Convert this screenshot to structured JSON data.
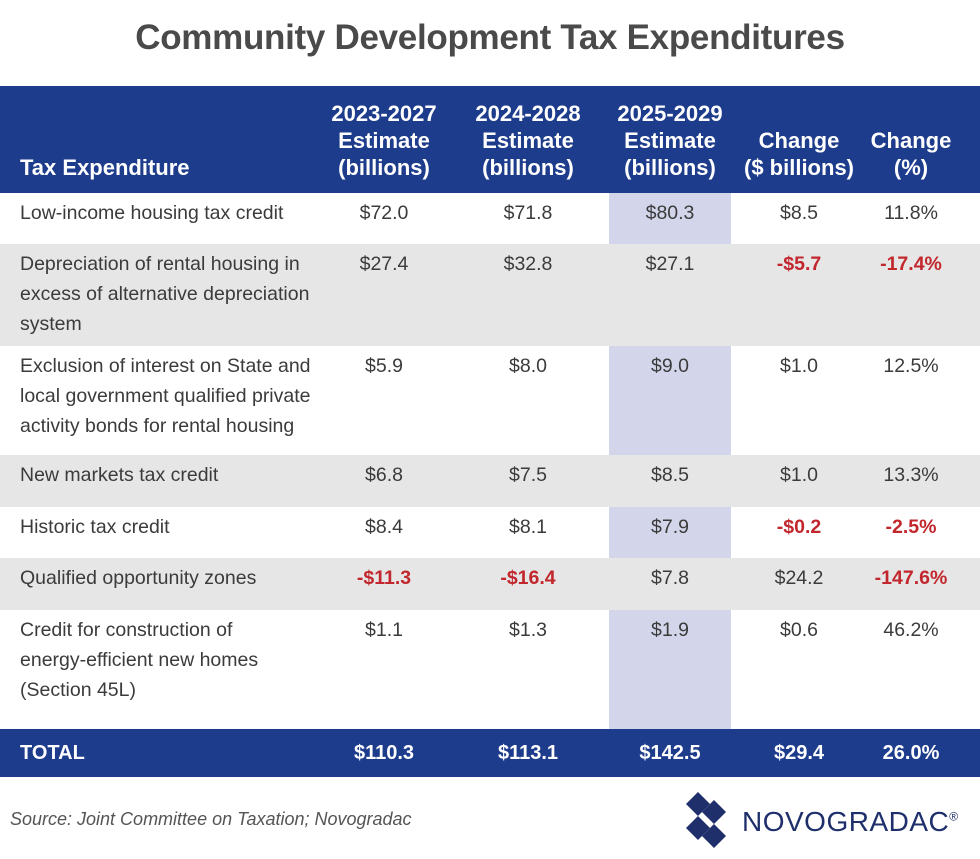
{
  "title": "Community Development Tax Expenditures",
  "chart_data": {
    "type": "table",
    "title": "Community Development Tax Expenditures",
    "columns": [
      [
        "Tax Expenditure"
      ],
      [
        "2023-2027",
        "Estimate",
        "(billions)"
      ],
      [
        "2024-2028",
        "Estimate",
        "(billions)"
      ],
      [
        "2025-2029",
        "Estimate",
        "(billions)"
      ],
      [
        "Change",
        "($ billions)"
      ],
      [
        "Change",
        "(%)"
      ]
    ],
    "rows": [
      {
        "name": [
          "Low-income housing tax credit"
        ],
        "values": [
          "$72.0",
          "$71.8",
          "$80.3",
          "$8.5",
          "11.8%"
        ],
        "neg": [
          false,
          false,
          false,
          false,
          false
        ]
      },
      {
        "name": [
          "Depreciation of rental housing in",
          "excess of alternative depreciation",
          "system"
        ],
        "values": [
          "$27.4",
          "$32.8",
          "$27.1",
          "-$5.7",
          "-17.4%"
        ],
        "neg": [
          false,
          false,
          false,
          true,
          true
        ]
      },
      {
        "name": [
          "Exclusion of interest on State and",
          "local government qualified private",
          "activity bonds for rental housing"
        ],
        "values": [
          "$5.9",
          "$8.0",
          "$9.0",
          "$1.0",
          "12.5%"
        ],
        "neg": [
          false,
          false,
          false,
          false,
          false
        ]
      },
      {
        "name": [
          "New markets tax credit"
        ],
        "values": [
          "$6.8",
          "$7.5",
          "$8.5",
          "$1.0",
          "13.3%"
        ],
        "neg": [
          false,
          false,
          false,
          false,
          false
        ]
      },
      {
        "name": [
          "Historic tax credit"
        ],
        "values": [
          "$8.4",
          "$8.1",
          "$7.9",
          "-$0.2",
          "-2.5%"
        ],
        "neg": [
          false,
          false,
          false,
          true,
          true
        ]
      },
      {
        "name": [
          "Qualified opportunity zones"
        ],
        "values": [
          "-$11.3",
          "-$16.4",
          "$7.8",
          "$24.2",
          "-147.6%"
        ],
        "neg": [
          true,
          true,
          false,
          false,
          true
        ]
      },
      {
        "name": [
          "Credit for construction of",
          "energy-efficient new homes",
          "(Section 45L)"
        ],
        "values": [
          "$1.1",
          "$1.3",
          "$1.9",
          "$0.6",
          "46.2%"
        ],
        "neg": [
          false,
          false,
          false,
          false,
          false
        ]
      }
    ],
    "total": {
      "label": "TOTAL",
      "values": [
        "$110.3",
        "$113.1",
        "$142.5",
        "$29.4",
        "26.0%"
      ]
    },
    "highlighted_column": "2025-2029"
  },
  "source": "Source: Joint Committee on Taxation; Novogradac",
  "logo": {
    "text": "NOVOGRADAC",
    "mark": "®"
  },
  "colors": {
    "header": "#1e3c8c",
    "negative": "#c1272d",
    "highlight": "#a7add6",
    "shade": "#e6e6e6"
  }
}
